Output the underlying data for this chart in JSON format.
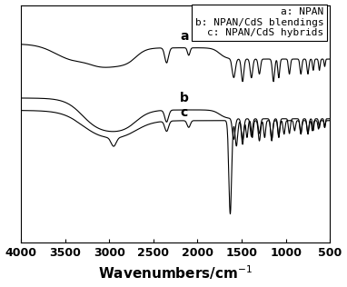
{
  "xlabel": "Wavenumbers/cm$^{-1}$",
  "line_color": "#000000",
  "background_color": "#ffffff",
  "label_a": "a",
  "label_b": "b",
  "label_c": "c",
  "legend_text": "a: NPAN\nb: NPAN/CdS blendings\nc: NPAN/CdS hybrids",
  "tick_positions": [
    500,
    1000,
    1500,
    2000,
    2500,
    3000,
    3500,
    4000
  ]
}
